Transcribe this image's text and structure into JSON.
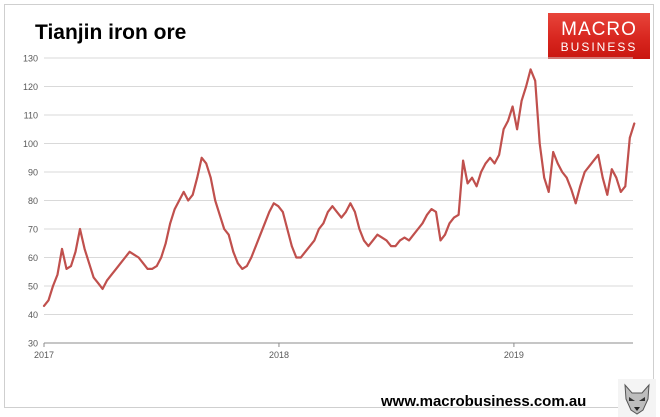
{
  "title": "Tianjin iron ore",
  "logo": {
    "line1": "MACRO",
    "line2": "BUSINESS"
  },
  "footer_url": "www.macrobusiness.com.au",
  "icons": {
    "mascot": "wolf-mascot-icon"
  },
  "colors": {
    "series": "#c0504d",
    "brand": "#d8261f",
    "grid": "#d9d9d9"
  },
  "chart_data": {
    "type": "line",
    "title": "Tianjin iron ore",
    "xlabel": "",
    "ylabel": "",
    "xlim": [
      "2017-01-01",
      "2019-07-05"
    ],
    "ylim": [
      30,
      130
    ],
    "yticks": [
      30,
      40,
      50,
      60,
      70,
      80,
      90,
      100,
      110,
      120,
      130
    ],
    "xticks": [
      {
        "label": "2017",
        "date": "2017-01-01"
      },
      {
        "label": "2018",
        "date": "2018-01-01"
      },
      {
        "label": "2019",
        "date": "2019-01-01"
      }
    ],
    "grid": true,
    "series": [
      {
        "color": "#c0504d",
        "points": [
          [
            "2017-01-01",
            43
          ],
          [
            "2017-01-08",
            45
          ],
          [
            "2017-01-15",
            50
          ],
          [
            "2017-01-22",
            54
          ],
          [
            "2017-01-29",
            63
          ],
          [
            "2017-02-05",
            56
          ],
          [
            "2017-02-12",
            57
          ],
          [
            "2017-02-19",
            62
          ],
          [
            "2017-02-26",
            70
          ],
          [
            "2017-03-05",
            63
          ],
          [
            "2017-03-12",
            58
          ],
          [
            "2017-03-19",
            53
          ],
          [
            "2017-03-26",
            51
          ],
          [
            "2017-04-02",
            49
          ],
          [
            "2017-04-09",
            52
          ],
          [
            "2017-04-16",
            54
          ],
          [
            "2017-04-23",
            56
          ],
          [
            "2017-04-30",
            58
          ],
          [
            "2017-05-07",
            60
          ],
          [
            "2017-05-14",
            62
          ],
          [
            "2017-05-21",
            61
          ],
          [
            "2017-05-28",
            60
          ],
          [
            "2017-06-04",
            58
          ],
          [
            "2017-06-11",
            56
          ],
          [
            "2017-06-18",
            56
          ],
          [
            "2017-06-25",
            57
          ],
          [
            "2017-07-02",
            60
          ],
          [
            "2017-07-09",
            65
          ],
          [
            "2017-07-16",
            72
          ],
          [
            "2017-07-23",
            77
          ],
          [
            "2017-07-30",
            80
          ],
          [
            "2017-08-06",
            83
          ],
          [
            "2017-08-13",
            80
          ],
          [
            "2017-08-20",
            82
          ],
          [
            "2017-08-27",
            88
          ],
          [
            "2017-09-03",
            95
          ],
          [
            "2017-09-10",
            93
          ],
          [
            "2017-09-17",
            88
          ],
          [
            "2017-09-24",
            80
          ],
          [
            "2017-10-01",
            75
          ],
          [
            "2017-10-08",
            70
          ],
          [
            "2017-10-15",
            68
          ],
          [
            "2017-10-22",
            62
          ],
          [
            "2017-10-29",
            58
          ],
          [
            "2017-11-05",
            56
          ],
          [
            "2017-11-12",
            57
          ],
          [
            "2017-11-19",
            60
          ],
          [
            "2017-11-26",
            64
          ],
          [
            "2017-12-03",
            68
          ],
          [
            "2017-12-10",
            72
          ],
          [
            "2017-12-17",
            76
          ],
          [
            "2017-12-24",
            79
          ],
          [
            "2017-12-31",
            78
          ],
          [
            "2018-01-07",
            76
          ],
          [
            "2018-01-14",
            70
          ],
          [
            "2018-01-21",
            64
          ],
          [
            "2018-01-28",
            60
          ],
          [
            "2018-02-04",
            60
          ],
          [
            "2018-02-11",
            62
          ],
          [
            "2018-02-18",
            64
          ],
          [
            "2018-02-25",
            66
          ],
          [
            "2018-03-04",
            70
          ],
          [
            "2018-03-11",
            72
          ],
          [
            "2018-03-18",
            76
          ],
          [
            "2018-03-25",
            78
          ],
          [
            "2018-04-01",
            76
          ],
          [
            "2018-04-08",
            74
          ],
          [
            "2018-04-15",
            76
          ],
          [
            "2018-04-22",
            79
          ],
          [
            "2018-04-29",
            76
          ],
          [
            "2018-05-06",
            70
          ],
          [
            "2018-05-13",
            66
          ],
          [
            "2018-05-20",
            64
          ],
          [
            "2018-05-27",
            66
          ],
          [
            "2018-06-03",
            68
          ],
          [
            "2018-06-10",
            67
          ],
          [
            "2018-06-17",
            66
          ],
          [
            "2018-06-24",
            64
          ],
          [
            "2018-07-01",
            64
          ],
          [
            "2018-07-08",
            66
          ],
          [
            "2018-07-15",
            67
          ],
          [
            "2018-07-22",
            66
          ],
          [
            "2018-07-29",
            68
          ],
          [
            "2018-08-05",
            70
          ],
          [
            "2018-08-12",
            72
          ],
          [
            "2018-08-19",
            75
          ],
          [
            "2018-08-26",
            77
          ],
          [
            "2018-09-02",
            76
          ],
          [
            "2018-09-09",
            66
          ],
          [
            "2018-09-16",
            68
          ],
          [
            "2018-09-23",
            72
          ],
          [
            "2018-09-30",
            74
          ],
          [
            "2018-10-07",
            75
          ],
          [
            "2018-10-14",
            94
          ],
          [
            "2018-10-21",
            86
          ],
          [
            "2018-10-28",
            88
          ],
          [
            "2018-11-04",
            85
          ],
          [
            "2018-11-11",
            90
          ],
          [
            "2018-11-18",
            93
          ],
          [
            "2018-11-25",
            95
          ],
          [
            "2018-12-02",
            93
          ],
          [
            "2018-12-09",
            96
          ],
          [
            "2018-12-16",
            105
          ],
          [
            "2018-12-23",
            108
          ],
          [
            "2018-12-30",
            113
          ],
          [
            "2019-01-06",
            105
          ],
          [
            "2019-01-13",
            115
          ],
          [
            "2019-01-20",
            120
          ],
          [
            "2019-01-27",
            126
          ],
          [
            "2019-02-03",
            122
          ],
          [
            "2019-02-10",
            100
          ],
          [
            "2019-02-17",
            88
          ],
          [
            "2019-02-24",
            83
          ],
          [
            "2019-03-03",
            97
          ],
          [
            "2019-03-10",
            93
          ],
          [
            "2019-03-17",
            90
          ],
          [
            "2019-03-24",
            88
          ],
          [
            "2019-03-31",
            84
          ],
          [
            "2019-04-07",
            79
          ],
          [
            "2019-04-14",
            85
          ],
          [
            "2019-04-21",
            90
          ],
          [
            "2019-04-28",
            92
          ],
          [
            "2019-05-05",
            94
          ],
          [
            "2019-05-12",
            96
          ],
          [
            "2019-05-19",
            88
          ],
          [
            "2019-05-26",
            82
          ],
          [
            "2019-06-02",
            91
          ],
          [
            "2019-06-09",
            88
          ],
          [
            "2019-06-16",
            83
          ],
          [
            "2019-06-23",
            85
          ],
          [
            "2019-06-30",
            102
          ],
          [
            "2019-07-07",
            107
          ]
        ]
      }
    ]
  }
}
